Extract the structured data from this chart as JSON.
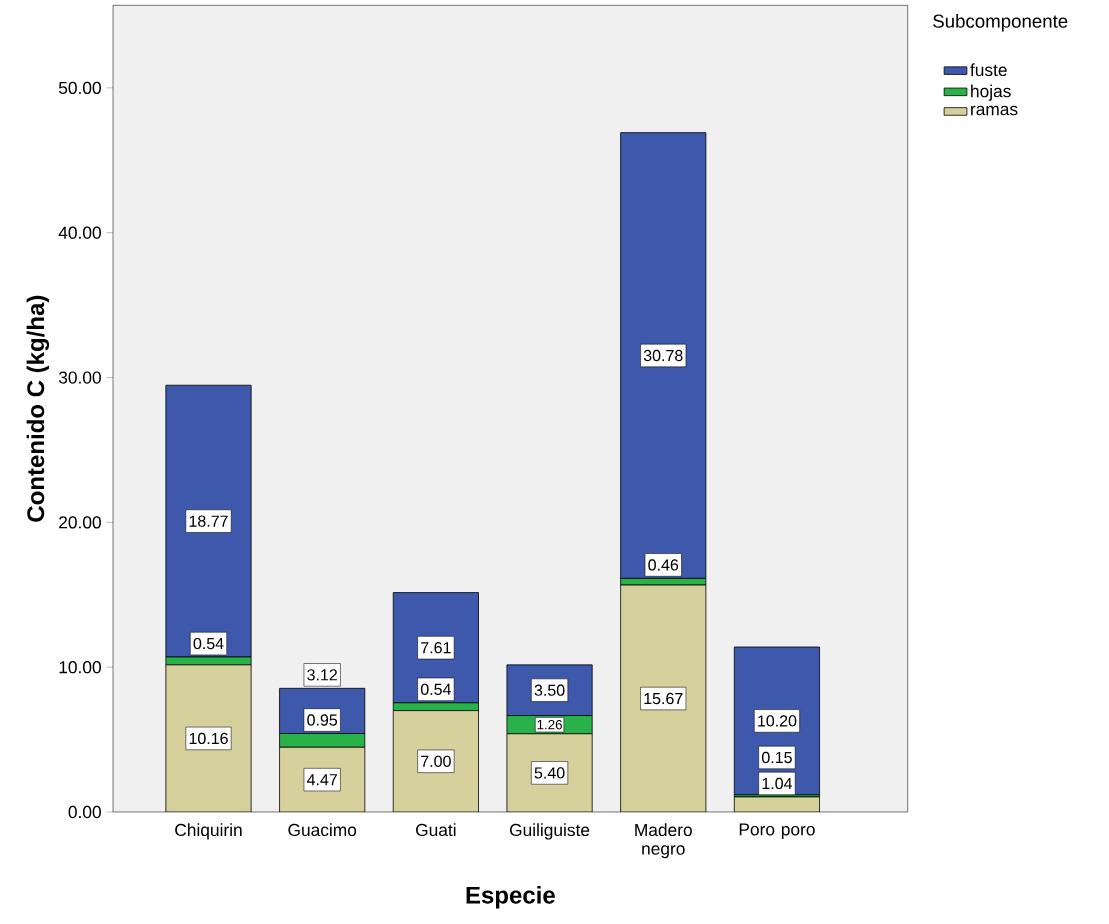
{
  "chart_data": {
    "type": "bar",
    "stacked": true,
    "xlabel": "Especie",
    "ylabel": "Contenido C (kg/ha)",
    "legend_title": "Subcomponente",
    "legend": "top right",
    "categories": [
      "Chiquirin",
      "Guacimo",
      "Guati",
      "Guiliguiste",
      "Madero negro",
      "Poro poro"
    ],
    "series": [
      {
        "name": "ramas",
        "color": "#d6d09c",
        "values": [
          10.16,
          4.47,
          7.0,
          5.4,
          15.67,
          1.04
        ],
        "value_labels": [
          "10.16",
          "4.47",
          "7.00",
          "5.40",
          "15.67",
          "1.04"
        ]
      },
      {
        "name": "hojas",
        "color": "#2ab24a",
        "values": [
          0.54,
          0.95,
          0.54,
          1.26,
          0.46,
          0.15
        ],
        "value_labels": [
          "0.54",
          "0.95",
          "0.54",
          "1.26",
          "0.46",
          "0.15"
        ]
      },
      {
        "name": "fuste",
        "color": "#3e58ac",
        "values": [
          18.77,
          3.12,
          7.61,
          3.5,
          30.78,
          10.2
        ],
        "value_labels": [
          "18.77",
          "3.12",
          "7.61",
          "3.50",
          "30.78",
          "10.20"
        ]
      }
    ],
    "ylim": [
      0,
      55.7
    ],
    "yticks": [
      {
        "value": 0,
        "label": "0.00"
      },
      {
        "value": 10,
        "label": "10.00"
      },
      {
        "value": 20,
        "label": "20.00"
      },
      {
        "value": 30,
        "label": "30.00"
      },
      {
        "value": 40,
        "label": "40.00"
      },
      {
        "value": 50,
        "label": "50.00"
      }
    ]
  }
}
